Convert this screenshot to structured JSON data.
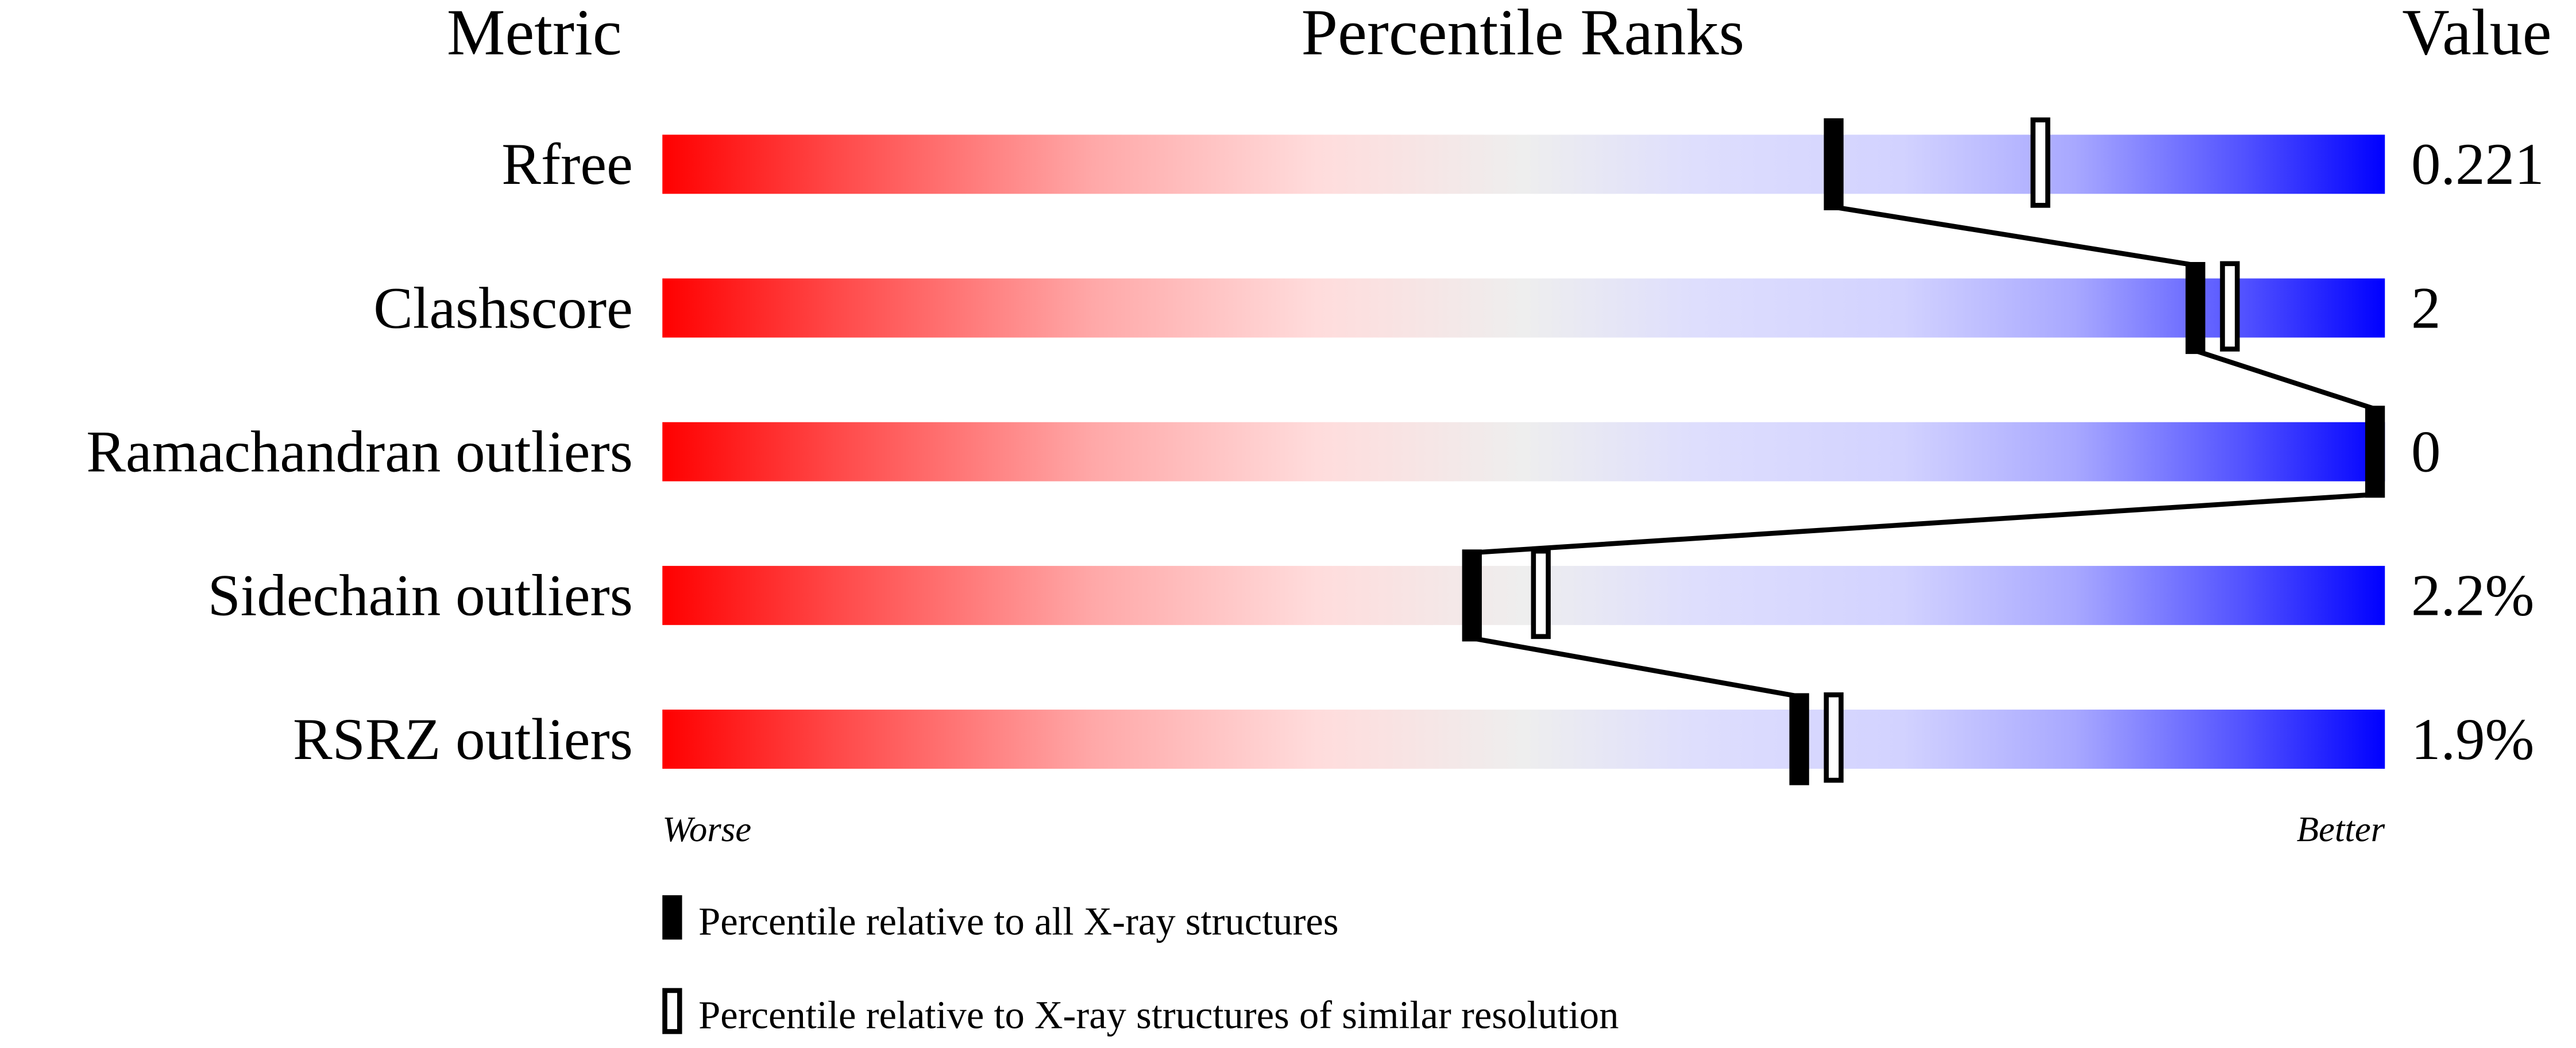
{
  "chart_data": {
    "type": "percentile-bar",
    "headers": {
      "metric": "Metric",
      "ranks": "Percentile Ranks",
      "value": "Value"
    },
    "xlim": [
      0,
      100
    ],
    "rows": [
      {
        "metric": "Rfree",
        "value": "0.221",
        "percentile_all": 68,
        "percentile_similar": 80
      },
      {
        "metric": "Clashscore",
        "value": "2",
        "percentile_all": 89,
        "percentile_similar": 91
      },
      {
        "metric": "Ramachandran outliers",
        "value": "0",
        "percentile_all": 100,
        "percentile_similar": 100
      },
      {
        "metric": "Sidechain outliers",
        "value": "2.2%",
        "percentile_all": 47,
        "percentile_similar": 51
      },
      {
        "metric": "RSRZ outliers",
        "value": "1.9%",
        "percentile_all": 66,
        "percentile_similar": 68
      }
    ],
    "axis_labels": {
      "left": "Worse",
      "right": "Better"
    },
    "legend": [
      {
        "marker": "filled",
        "label": "Percentile relative to all X-ray structures"
      },
      {
        "marker": "open",
        "label": "Percentile relative to X-ray structures of similar resolution"
      }
    ],
    "colors": {
      "worse": "#ff0000",
      "middle": "#eeeeee",
      "better": "#0000ff",
      "marker": "#000000"
    }
  }
}
